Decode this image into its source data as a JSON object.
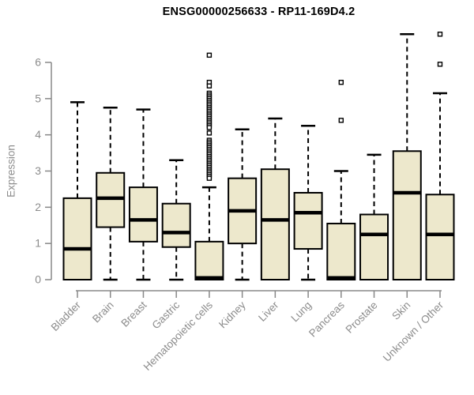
{
  "window": {
    "title": "ENSG00000256633 - RP11-169D4.2"
  },
  "chart_data": {
    "type": "boxplot",
    "title": "ENSG00000256633 - RP11-169D4.2",
    "xlabel": "",
    "ylabel": "Expression",
    "ylim": [
      0,
      6.9
    ],
    "yticks": [
      0,
      1,
      2,
      3,
      4,
      5,
      6
    ],
    "grid": false,
    "legend": "none",
    "categories": [
      "Bladder",
      "Brain",
      "Breast",
      "Gastric",
      "Hematopoietic cells",
      "Kidney",
      "Liver",
      "Lung",
      "Pancreas",
      "Prostate",
      "Skin",
      "Unknown / Other"
    ],
    "series": [
      {
        "name": "Bladder",
        "low": 0,
        "q1": 0,
        "median": 0.85,
        "q3": 2.25,
        "high": 4.9,
        "outliers": []
      },
      {
        "name": "Brain",
        "low": 0,
        "q1": 1.45,
        "median": 2.25,
        "q3": 2.95,
        "high": 4.75,
        "outliers": []
      },
      {
        "name": "Breast",
        "low": 0,
        "q1": 1.05,
        "median": 1.65,
        "q3": 2.55,
        "high": 4.7,
        "outliers": []
      },
      {
        "name": "Gastric",
        "low": 0,
        "q1": 0.9,
        "median": 1.3,
        "q3": 2.1,
        "high": 3.3,
        "outliers": []
      },
      {
        "name": "Hematopoietic cells",
        "low": 0,
        "q1": 0,
        "median": 0.05,
        "q3": 1.05,
        "high": 2.55,
        "outliers": [
          6.2,
          5.45,
          5.35,
          5.15,
          5.1,
          5.05,
          5.0,
          4.95,
          4.9,
          4.85,
          4.8,
          4.75,
          4.7,
          4.65,
          4.6,
          4.55,
          4.5,
          4.45,
          4.4,
          4.35,
          4.3,
          4.25,
          4.2,
          4.05,
          3.85,
          3.8,
          3.75,
          3.7,
          3.65,
          3.6,
          3.55,
          3.5,
          3.45,
          3.4,
          3.35,
          3.3,
          3.25,
          3.2,
          3.15,
          3.1,
          3.05,
          3.0,
          2.95,
          2.9,
          2.85,
          2.8
        ]
      },
      {
        "name": "Kidney",
        "low": 0,
        "q1": 1.0,
        "median": 1.9,
        "q3": 2.8,
        "high": 4.15,
        "outliers": []
      },
      {
        "name": "Liver",
        "low": 0,
        "q1": 0,
        "median": 1.65,
        "q3": 3.05,
        "high": 4.45,
        "outliers": []
      },
      {
        "name": "Lung",
        "low": 0,
        "q1": 0.85,
        "median": 1.85,
        "q3": 2.4,
        "high": 4.25,
        "outliers": []
      },
      {
        "name": "Pancreas",
        "low": 0,
        "q1": 0,
        "median": 0.05,
        "q3": 1.55,
        "high": 3.0,
        "outliers": [
          5.45,
          4.4
        ]
      },
      {
        "name": "Prostate",
        "low": 0,
        "q1": 0,
        "median": 1.25,
        "q3": 1.8,
        "high": 3.45,
        "outliers": []
      },
      {
        "name": "Skin",
        "low": 0,
        "q1": 0,
        "median": 2.4,
        "q3": 3.55,
        "high": 6.78,
        "outliers": []
      },
      {
        "name": "Unknown / Other",
        "low": 0,
        "q1": 0,
        "median": 1.25,
        "q3": 2.35,
        "high": 5.15,
        "outliers": [
          6.78,
          5.95
        ]
      }
    ]
  },
  "colors": {
    "box_fill": "#ede8cc",
    "box_stroke": "#000000",
    "median": "#000000",
    "whisker": "#000000",
    "outlier": "#000000",
    "axis": "#888888",
    "tick_label": "#8c8c8c",
    "title": "#000000",
    "background": "#ffffff"
  }
}
